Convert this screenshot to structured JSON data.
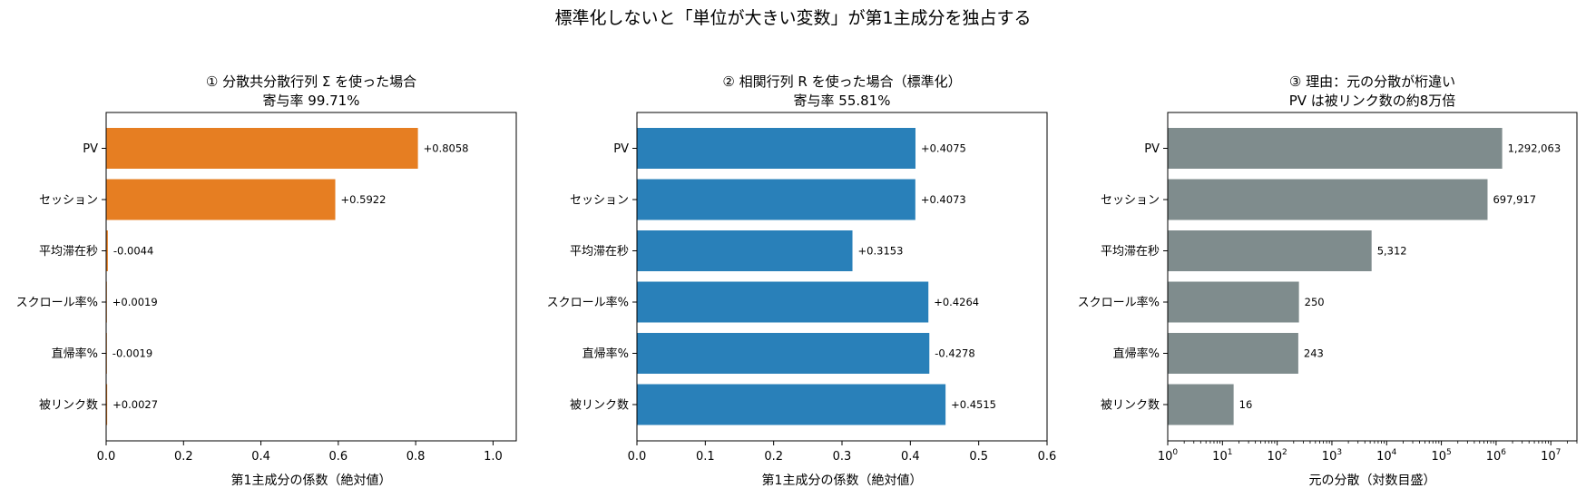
{
  "figure_title": "標準化しないと「単位が大きい変数」が第1主成分を独占する",
  "chart_data": [
    {
      "type": "bar",
      "orientation": "horizontal",
      "title_line1": "① 分散共分散行列 Σ を使った場合",
      "title_line2": "寄与率 99.71%",
      "xlabel": "第1主成分の係数（絶対値）",
      "categories": [
        "PV",
        "セッション",
        "平均滞在秒",
        "スクロール率%",
        "直帰率%",
        "被リンク数"
      ],
      "values": [
        0.8058,
        0.5922,
        0.0044,
        0.0019,
        0.0019,
        0.0027
      ],
      "labels": [
        "+0.8058",
        "+0.5922",
        "-0.0044",
        "+0.0019",
        "-0.0019",
        "+0.0027"
      ],
      "xlim": [
        0,
        1.06
      ],
      "xticks": [
        0,
        0.2,
        0.4,
        0.6,
        0.8,
        1.0
      ],
      "xtick_labels": [
        "0.0",
        "0.2",
        "0.4",
        "0.6",
        "0.8",
        "1.0"
      ],
      "color": "#e67e22"
    },
    {
      "type": "bar",
      "orientation": "horizontal",
      "title_line1": "② 相関行列 R を使った場合（標準化）",
      "title_line2": "寄与率 55.81%",
      "xlabel": "第1主成分の係数（絶対値）",
      "categories": [
        "PV",
        "セッション",
        "平均滞在秒",
        "スクロール率%",
        "直帰率%",
        "被リンク数"
      ],
      "values": [
        0.4075,
        0.4073,
        0.3153,
        0.4264,
        0.4278,
        0.4515
      ],
      "labels": [
        "+0.4075",
        "+0.4073",
        "+0.3153",
        "+0.4264",
        "-0.4278",
        "+0.4515"
      ],
      "xlim": [
        0,
        0.6
      ],
      "xticks": [
        0,
        0.1,
        0.2,
        0.3,
        0.4,
        0.5,
        0.6
      ],
      "xtick_labels": [
        "0.0",
        "0.1",
        "0.2",
        "0.3",
        "0.4",
        "0.5",
        "0.6"
      ],
      "color": "#2980b9"
    },
    {
      "type": "bar",
      "orientation": "horizontal",
      "scale": "log",
      "title_line1": "③ 理由：元の分散が桁違い",
      "title_line2": "PV は被リンク数の約8万倍",
      "xlabel": "元の分散（対数目盛）",
      "categories": [
        "PV",
        "セッション",
        "平均滞在秒",
        "スクロール率%",
        "直帰率%",
        "被リンク数"
      ],
      "values": [
        1292063,
        697917,
        5312,
        250,
        243,
        16
      ],
      "labels": [
        "1,292,063",
        "697,917",
        "5,312",
        "250",
        "243",
        "16"
      ],
      "xlim": [
        1,
        30000000
      ],
      "xtick_exponents": [
        "0",
        "1",
        "2",
        "3",
        "4",
        "5",
        "6",
        "7"
      ],
      "xtick_base": "10",
      "color": "#7f8c8d"
    }
  ]
}
